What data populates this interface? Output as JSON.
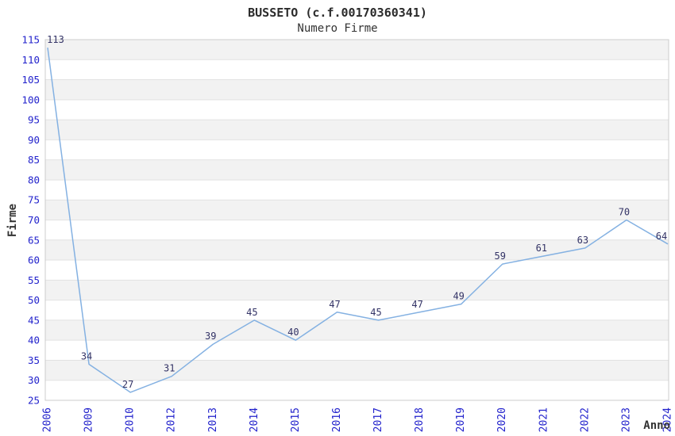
{
  "header": {
    "title": "BUSSETO (c.f.00170360341)",
    "subtitle": "Numero Firme"
  },
  "chart_data": {
    "type": "line",
    "title": "BUSSETO (c.f.00170360341)",
    "subtitle": "Numero Firme",
    "xlabel": "Anno",
    "ylabel": "Firme",
    "categories": [
      "2006",
      "2009",
      "2010",
      "2012",
      "2013",
      "2014",
      "2015",
      "2016",
      "2017",
      "2018",
      "2019",
      "2020",
      "2021",
      "2022",
      "2023",
      "2024"
    ],
    "values": [
      113,
      34,
      27,
      31,
      39,
      45,
      40,
      47,
      45,
      47,
      49,
      59,
      61,
      63,
      70,
      64
    ],
    "ylim": [
      25,
      115
    ],
    "ytick_step": 5,
    "grid": "horizontal-bands-alternating",
    "legend": "none",
    "colors": {
      "line": "#84b1e2",
      "tick_label": "#2222cc",
      "data_label": "#333366",
      "band_gray": "#f2f2f2",
      "band_white": "#ffffff",
      "gridline": "#e2e2e2",
      "plot_border": "#cccccc",
      "title_text": "#2b2b2b"
    }
  }
}
